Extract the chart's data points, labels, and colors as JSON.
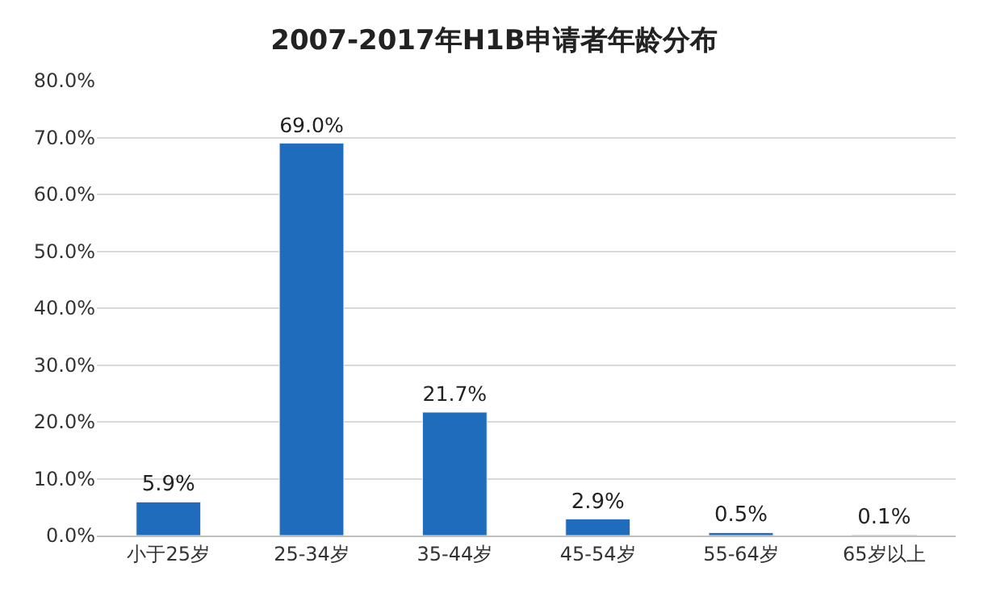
{
  "chart_data": {
    "type": "bar",
    "title": "2007-2017年H1B申请者年龄分布",
    "categories": [
      "小于25岁",
      "25-34岁",
      "35-44岁",
      "45-54岁",
      "55-64岁",
      "65岁以上"
    ],
    "values": [
      5.9,
      69.0,
      21.7,
      2.9,
      0.5,
      0.1
    ],
    "value_labels": [
      "5.9%",
      "69.0%",
      "21.7%",
      "2.9%",
      "0.5%",
      "0.1%"
    ],
    "color": "#1f6cbd",
    "ylim": [
      0,
      80
    ],
    "yticks": [
      {
        "value": 0,
        "label": "0.0%"
      },
      {
        "value": 10,
        "label": "10.0%"
      },
      {
        "value": 20,
        "label": "20.0%"
      },
      {
        "value": 30,
        "label": "30.0%"
      },
      {
        "value": 40,
        "label": "40.0%"
      },
      {
        "value": 50,
        "label": "50.0%"
      },
      {
        "value": 60,
        "label": "60.0%"
      },
      {
        "value": 70,
        "label": "70.0%"
      },
      {
        "value": 80,
        "label": "80.0%"
      }
    ],
    "grid": "y"
  }
}
